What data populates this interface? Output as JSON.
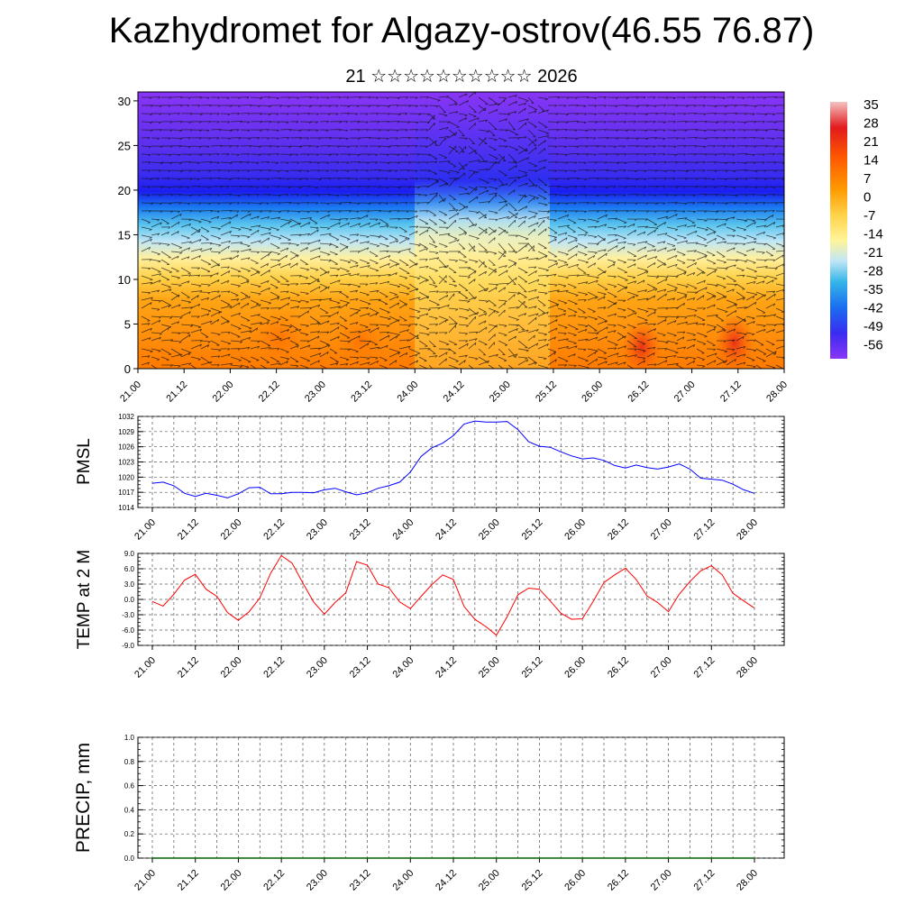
{
  "title": "Kazhydromet for Algazy-ostrov(46.55 76.87)",
  "subtitle": "21 ☆☆☆☆☆☆☆☆☆☆ 2026",
  "chart_data": [
    {
      "type": "heatmap",
      "name": "cross-section",
      "ylim": [
        0,
        31
      ],
      "yticks": [
        0,
        5,
        10,
        15,
        20,
        25,
        30
      ],
      "xticks": [
        "21.00",
        "21.12",
        "22.00",
        "22.12",
        "23.00",
        "23.12",
        "24.00",
        "24.12",
        "25.00",
        "25.12",
        "26.00",
        "26.12",
        "27.00",
        "27.12",
        "28.00"
      ],
      "colorbar_labels": [
        "35",
        "28",
        "21",
        "14",
        "7",
        "0",
        "-7",
        "-14",
        "-21",
        "-28",
        "-35",
        "-42",
        "-49",
        "-56"
      ],
      "colors": [
        "#f4c2c2",
        "#e31a1c",
        "#ff5a00",
        "#ff9a00",
        "#ffd24a",
        "#fff59a",
        "#bfe6f6",
        "#36b5e8",
        "#1a6ef0",
        "#3a2cf0",
        "#6b2ff0",
        "#8a35f5"
      ],
      "wind_vectors": true
    },
    {
      "type": "line",
      "name": "PMSL",
      "ylabel": "PMSL",
      "ylim": [
        1014,
        1032
      ],
      "yticks": [
        "1014",
        "1017",
        "1020",
        "1023",
        "1026",
        "1029",
        "1032"
      ],
      "xticks": [
        "21.00",
        "21.12",
        "22.00",
        "22.12",
        "23.00",
        "23.12",
        "24.00",
        "24.12",
        "25.00",
        "25.12",
        "26.00",
        "26.12",
        "27.00",
        "27.12",
        "28.00"
      ],
      "series": [
        {
          "color": "#0000ff",
          "values": [
            1018.8,
            1019.0,
            1018.3,
            1016.8,
            1016.2,
            1016.8,
            1016.4,
            1015.9,
            1016.7,
            1017.9,
            1018.0,
            1016.7,
            1016.7,
            1017.0,
            1017.0,
            1016.9,
            1017.5,
            1017.8,
            1017.1,
            1016.5,
            1016.9,
            1017.8,
            1018.3,
            1019.0,
            1021.0,
            1024.1,
            1025.8,
            1026.7,
            1028.2,
            1030.5,
            1031.1,
            1030.9,
            1030.9,
            1031.0,
            1029.4,
            1027.0,
            1026.1,
            1025.9,
            1025.0,
            1024.2,
            1023.6,
            1023.8,
            1023.3,
            1022.3,
            1021.8,
            1022.4,
            1021.9,
            1021.6,
            1022.0,
            1022.6,
            1021.6,
            1019.8,
            1019.6,
            1019.4,
            1018.6,
            1017.5,
            1016.8
          ]
        }
      ]
    },
    {
      "type": "line",
      "name": "TEMP at 2 M",
      "ylabel": "TEMP at 2 M",
      "ylim": [
        -9,
        9
      ],
      "yticks": [
        "-9.0",
        "-6.0",
        "-3.0",
        "0.0",
        "3.0",
        "6.0",
        "9.0"
      ],
      "xticks": [
        "21.00",
        "21.12",
        "22.00",
        "22.12",
        "23.00",
        "23.12",
        "24.00",
        "24.12",
        "25.00",
        "25.12",
        "26.00",
        "26.12",
        "27.00",
        "27.12",
        "28.00"
      ],
      "series": [
        {
          "color": "#ff0000",
          "values": [
            -0.4,
            -1.3,
            1.0,
            3.8,
            4.9,
            2.0,
            0.6,
            -2.6,
            -4.1,
            -2.4,
            0.3,
            5.1,
            8.6,
            7.1,
            3.2,
            -0.5,
            -2.9,
            -0.6,
            1.3,
            7.4,
            6.7,
            3.0,
            2.3,
            -0.5,
            -1.8,
            0.6,
            2.9,
            4.8,
            3.9,
            -1.4,
            -3.9,
            -5.3,
            -7.0,
            -3.4,
            0.9,
            2.2,
            2.0,
            -0.3,
            -2.7,
            -3.9,
            -3.8,
            -0.4,
            3.3,
            4.8,
            6.1,
            3.9,
            0.7,
            -0.6,
            -2.4,
            1.0,
            3.5,
            5.6,
            6.6,
            4.8,
            1.2,
            -0.3,
            -1.7
          ]
        }
      ]
    },
    {
      "type": "line",
      "name": "PRECIP, mm",
      "ylabel": "PRECIP, mm",
      "ylim": [
        0,
        1.0
      ],
      "yticks": [
        "0.0",
        "0.2",
        "0.4",
        "0.6",
        "0.8",
        "1.0"
      ],
      "xticks": [
        "21.00",
        "21.12",
        "22.00",
        "22.12",
        "23.00",
        "23.12",
        "24.00",
        "24.12",
        "25.00",
        "25.12",
        "26.00",
        "26.12",
        "27.00",
        "27.12",
        "28.00"
      ],
      "series": [
        {
          "color": "#006400",
          "values": [
            0,
            0,
            0,
            0,
            0,
            0,
            0,
            0,
            0,
            0,
            0,
            0,
            0,
            0,
            0,
            0,
            0,
            0,
            0,
            0,
            0,
            0,
            0,
            0,
            0,
            0,
            0,
            0,
            0,
            0,
            0,
            0,
            0,
            0,
            0,
            0,
            0,
            0,
            0,
            0,
            0,
            0,
            0,
            0,
            0,
            0,
            0,
            0,
            0,
            0,
            0,
            0,
            0,
            0,
            0,
            0,
            0
          ]
        }
      ]
    }
  ]
}
